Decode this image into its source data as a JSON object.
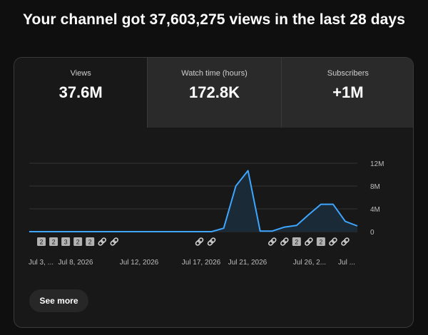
{
  "headline": "Your channel got 37,603,275 views in the last 28 days",
  "tabs": [
    {
      "label": "Views",
      "value": "37.6M",
      "selected": true
    },
    {
      "label": "Watch time (hours)",
      "value": "172.8K",
      "selected": false
    },
    {
      "label": "Subscribers",
      "value": "+1M",
      "selected": false
    }
  ],
  "chart_data": {
    "type": "area",
    "x": [
      "Jul 3",
      "Jul 4",
      "Jul 5",
      "Jul 6",
      "Jul 7",
      "Jul 8",
      "Jul 9",
      "Jul 10",
      "Jul 11",
      "Jul 12",
      "Jul 13",
      "Jul 14",
      "Jul 15",
      "Jul 16",
      "Jul 17",
      "Jul 18",
      "Jul 19",
      "Jul 20",
      "Jul 21",
      "Jul 22",
      "Jul 23",
      "Jul 24",
      "Jul 25",
      "Jul 26",
      "Jul 27",
      "Jul 28",
      "Jul 29",
      "Jul 30"
    ],
    "values": [
      0,
      0,
      0,
      0,
      0,
      0,
      0,
      0,
      0,
      0,
      0,
      0,
      0,
      0,
      0,
      0,
      0.6,
      8,
      10.7,
      0.1,
      0.1,
      0.8,
      1.1,
      3,
      4.8,
      4.8,
      1.8,
      1
    ],
    "unit": "M",
    "ylim": [
      0,
      12
    ],
    "y_ticks": [
      "12M",
      "8M",
      "4M",
      "0"
    ],
    "x_tick_labels": [
      "Jul 3, ...",
      "Jul 8, 2026",
      "Jul 12, 2026",
      "Jul 17, 2026",
      "Jul 21, 2026",
      "Jul 26, 2...",
      "Jul ..."
    ],
    "grid": true,
    "line_color": "#3ea6ff",
    "fill_color": "#1a2a36"
  },
  "markers": [
    {
      "kind": "badge",
      "text": "2"
    },
    {
      "kind": "badge",
      "text": "2"
    },
    {
      "kind": "badge",
      "text": "3"
    },
    {
      "kind": "badge",
      "text": "2"
    },
    {
      "kind": "badge",
      "text": "2"
    },
    {
      "kind": "link",
      "icon": "link-icon"
    },
    {
      "kind": "link",
      "icon": "link-icon"
    },
    {
      "kind": "link",
      "icon": "link-icon"
    },
    {
      "kind": "link",
      "icon": "link-icon"
    },
    {
      "kind": "link",
      "icon": "link-icon"
    },
    {
      "kind": "link",
      "icon": "link-icon"
    },
    {
      "kind": "badge",
      "text": "2"
    },
    {
      "kind": "link",
      "icon": "link-icon"
    },
    {
      "kind": "badge",
      "text": "2"
    },
    {
      "kind": "link",
      "icon": "link-icon"
    },
    {
      "kind": "link",
      "icon": "link-icon"
    }
  ],
  "see_more_label": "See more"
}
